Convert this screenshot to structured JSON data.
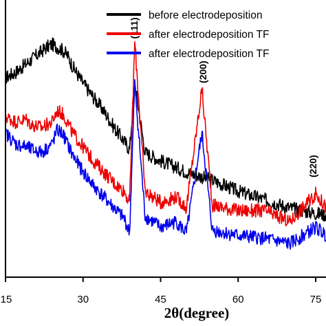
{
  "chart_data": {
    "type": "line",
    "xlabel": "2θ(degree)",
    "ylabel": "",
    "xlim": [
      15,
      80
    ],
    "ylim": [
      0,
      100
    ],
    "x_ticks": [
      "15",
      "30",
      "45",
      "60",
      "75"
    ],
    "x_tick_values": [
      15,
      30,
      45,
      60,
      75
    ],
    "legend_position": "top-right",
    "series": [
      {
        "name": "before electrodeposition",
        "color": "#000000",
        "x": [
          15,
          17,
          19,
          21,
          23,
          24,
          25,
          26,
          27,
          28,
          30,
          32,
          34,
          36,
          38,
          39,
          40,
          42,
          45,
          50,
          55,
          60,
          65,
          70,
          75,
          80
        ],
        "y": [
          72,
          74,
          77,
          80,
          83,
          84,
          83,
          82,
          80,
          76,
          70,
          65,
          60,
          54,
          49,
          46,
          70,
          45,
          42,
          38,
          35,
          31,
          28,
          25,
          23,
          22
        ]
      },
      {
        "name": "after electrodeposition TF",
        "color": "#ee0000",
        "x": [
          15,
          17,
          19,
          20,
          22,
          24,
          25,
          26,
          27,
          28,
          30,
          32,
          34,
          36,
          38,
          39,
          40,
          42,
          45,
          48,
          50,
          53,
          55,
          60,
          65,
          70,
          75,
          80
        ],
        "y": [
          58,
          56,
          57,
          55,
          54,
          56,
          60,
          59,
          56,
          52,
          47,
          42,
          38,
          34,
          31,
          27,
          85,
          31,
          27,
          29,
          25,
          68,
          26,
          24,
          24,
          20,
          30,
          18
        ]
      },
      {
        "name": "after electrodeposition TF",
        "color": "#0000ee",
        "x": [
          15,
          17,
          19,
          20,
          22,
          24,
          25,
          26,
          27,
          28,
          30,
          32,
          34,
          36,
          38,
          39,
          40,
          42,
          45,
          48,
          50,
          53,
          55,
          60,
          65,
          70,
          75,
          80
        ],
        "y": [
          52,
          48,
          47,
          46,
          45,
          48,
          53,
          52,
          48,
          44,
          38,
          33,
          29,
          25,
          21,
          16,
          70,
          22,
          18,
          20,
          16,
          52,
          17,
          15,
          14,
          12,
          18,
          11
        ]
      }
    ],
    "annotations": [
      {
        "text": "(111)",
        "x": 39.9,
        "y": 84
      },
      {
        "text": "(200)",
        "x": 53.2,
        "y": 68
      },
      {
        "text": "(220)",
        "x": 74.5,
        "y": 34
      }
    ]
  }
}
